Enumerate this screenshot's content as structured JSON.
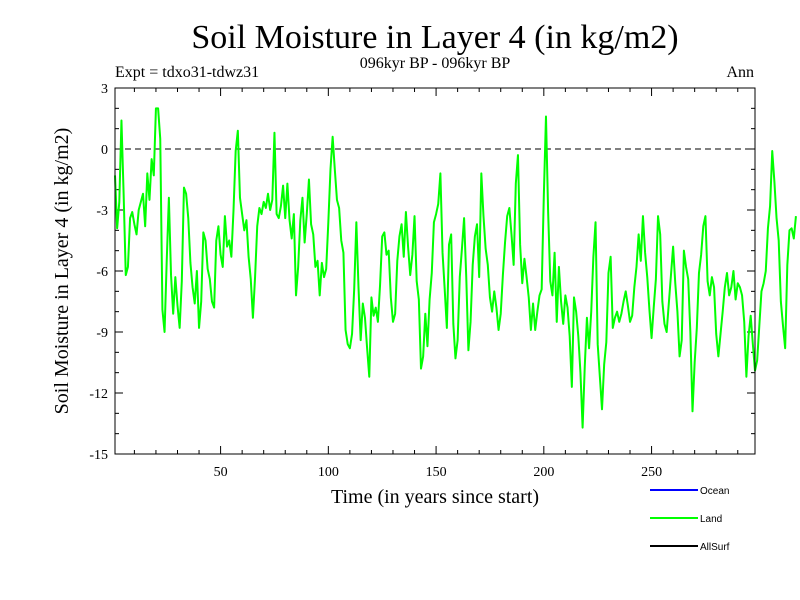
{
  "chart_data": {
    "type": "line",
    "title": "Soil Moisture in Layer 4 (in kg/m2)",
    "subtitle": "096kyr BP - 096kyr BP",
    "experiment": "Expt = tdxo31-tdwz31",
    "season": "Ann",
    "xlabel": "Time (in years since start)",
    "ylabel": "Soil Moisture in Layer 4 (in kg/m2)",
    "xlim": [
      1,
      298
    ],
    "ylim": [
      -15,
      3
    ],
    "xticks": [
      50,
      100,
      150,
      200,
      250
    ],
    "yticks": [
      3,
      0,
      -3,
      -6,
      -9,
      -12,
      -15
    ],
    "zero_line": 0,
    "legend": [
      {
        "name": "Ocean",
        "color": "#0000ff"
      },
      {
        "name": "Land",
        "color": "#00ff00"
      },
      {
        "name": "AllSurf",
        "color": "#000000"
      }
    ],
    "series": [
      {
        "name": "Land",
        "color": "#00ff00",
        "x_start": 1,
        "x_step": 1,
        "values": [
          -1.3,
          -3.9,
          -2.6,
          1.4,
          -2.2,
          -6.2,
          -5.8,
          -3.4,
          -3.1,
          -3.7,
          -4.2,
          -3.0,
          -2.6,
          -2.2,
          -3.8,
          -1.2,
          -2.5,
          -0.5,
          -1.3,
          2.0,
          2.0,
          0.5,
          -7.9,
          -9.0,
          -5.5,
          -2.4,
          -6.2,
          -8.1,
          -6.3,
          -7.7,
          -8.8,
          -6.5,
          -1.9,
          -2.2,
          -3.4,
          -5.6,
          -6.8,
          -7.6,
          -6.0,
          -8.8,
          -7.5,
          -4.1,
          -4.5,
          -5.9,
          -6.4,
          -7.5,
          -7.8,
          -4.5,
          -3.8,
          -5.2,
          -5.8,
          -3.3,
          -4.8,
          -4.5,
          -5.3,
          -3.0,
          -0.1,
          0.9,
          -2.4,
          -3.2,
          -4.0,
          -3.5,
          -5.3,
          -6.4,
          -8.3,
          -6.3,
          -3.8,
          -2.9,
          -3.2,
          -2.6,
          -2.9,
          -2.2,
          -3.0,
          -2.5,
          0.8,
          -3.2,
          -3.4,
          -2.8,
          -1.8,
          -3.4,
          -1.7,
          -3.5,
          -4.4,
          -3.2,
          -7.2,
          -5.8,
          -3.5,
          -2.4,
          -4.6,
          -3.2,
          -1.5,
          -3.7,
          -4.2,
          -5.8,
          -5.5,
          -7.2,
          -5.6,
          -6.3,
          -5.9,
          -3.6,
          -1.0,
          0.6,
          -1.0,
          -2.5,
          -2.9,
          -4.5,
          -5.1,
          -8.9,
          -9.6,
          -9.8,
          -9.1,
          -6.9,
          -3.6,
          -6.8,
          -9.4,
          -7.6,
          -8.3,
          -9.8,
          -11.2,
          -7.3,
          -8.2,
          -7.8,
          -8.5,
          -6.7,
          -4.3,
          -4.1,
          -5.2,
          -5.0,
          -7.3,
          -8.5,
          -8.1,
          -5.5,
          -4.3,
          -3.7,
          -5.3,
          -3.1,
          -4.8,
          -6.2,
          -5.2,
          -3.3,
          -6.5,
          -7.4,
          -10.8,
          -10.2,
          -8.1,
          -9.7,
          -7.4,
          -6.1,
          -3.6,
          -3.2,
          -2.7,
          -1.2,
          -5.1,
          -6.9,
          -8.8,
          -4.7,
          -4.2,
          -8.6,
          -10.3,
          -9.4,
          -6.3,
          -4.9,
          -3.4,
          -6.3,
          -9.9,
          -8.5,
          -5.7,
          -4.3,
          -3.7,
          -6.3,
          -1.2,
          -3.3,
          -4.9,
          -5.7,
          -7.3,
          -8.0,
          -7.0,
          -7.8,
          -8.9,
          -8.1,
          -6.2,
          -4.6,
          -3.3,
          -2.9,
          -4.2,
          -5.7,
          -1.7,
          -0.3,
          -4.7,
          -6.6,
          -5.4,
          -6.3,
          -7.3,
          -8.9,
          -7.6,
          -8.9,
          -8.0,
          -7.2,
          -6.9,
          -2.3,
          1.6,
          -3.1,
          -6.5,
          -7.2,
          -5.1,
          -8.5,
          -5.8,
          -7.5,
          -8.6,
          -7.2,
          -7.8,
          -9.2,
          -11.7,
          -7.3,
          -8.0,
          -9.2,
          -11.0,
          -13.7,
          -10.7,
          -8.3,
          -9.8,
          -8.0,
          -5.3,
          -3.6,
          -9.6,
          -11.2,
          -12.8,
          -10.6,
          -9.5,
          -6.1,
          -5.3,
          -8.8,
          -8.3,
          -8.0,
          -8.5,
          -8.1,
          -7.5,
          -7.0,
          -7.7,
          -8.5,
          -8.2,
          -6.8,
          -5.8,
          -4.2,
          -5.5,
          -3.3,
          -5.1,
          -6.3,
          -7.9,
          -9.3,
          -7.8,
          -6.4,
          -3.3,
          -4.2,
          -7.5,
          -8.6,
          -9.0,
          -7.6,
          -6.2,
          -4.8,
          -6.6,
          -8.0,
          -10.2,
          -9.4,
          -5.0,
          -5.8,
          -6.4,
          -9.0,
          -12.9,
          -10.5,
          -8.8,
          -6.1,
          -5.2,
          -3.8,
          -3.3,
          -6.5,
          -7.2,
          -6.3,
          -6.8,
          -9.1,
          -10.2,
          -9.1,
          -8.0,
          -6.8,
          -6.1,
          -7.2,
          -6.8,
          -6.0,
          -7.4,
          -6.6,
          -6.8,
          -7.2,
          -8.5,
          -11.2,
          -9.2,
          -8.2,
          -9.6,
          -10.9,
          -10.4,
          -8.7,
          -7.0,
          -6.6,
          -6.0,
          -3.9,
          -2.8,
          -0.1,
          -1.6,
          -3.4,
          -4.5,
          -7.5,
          -8.7,
          -9.8,
          -5.7,
          -4.0,
          -3.9,
          -4.4,
          -3.3
        ]
      }
    ]
  }
}
